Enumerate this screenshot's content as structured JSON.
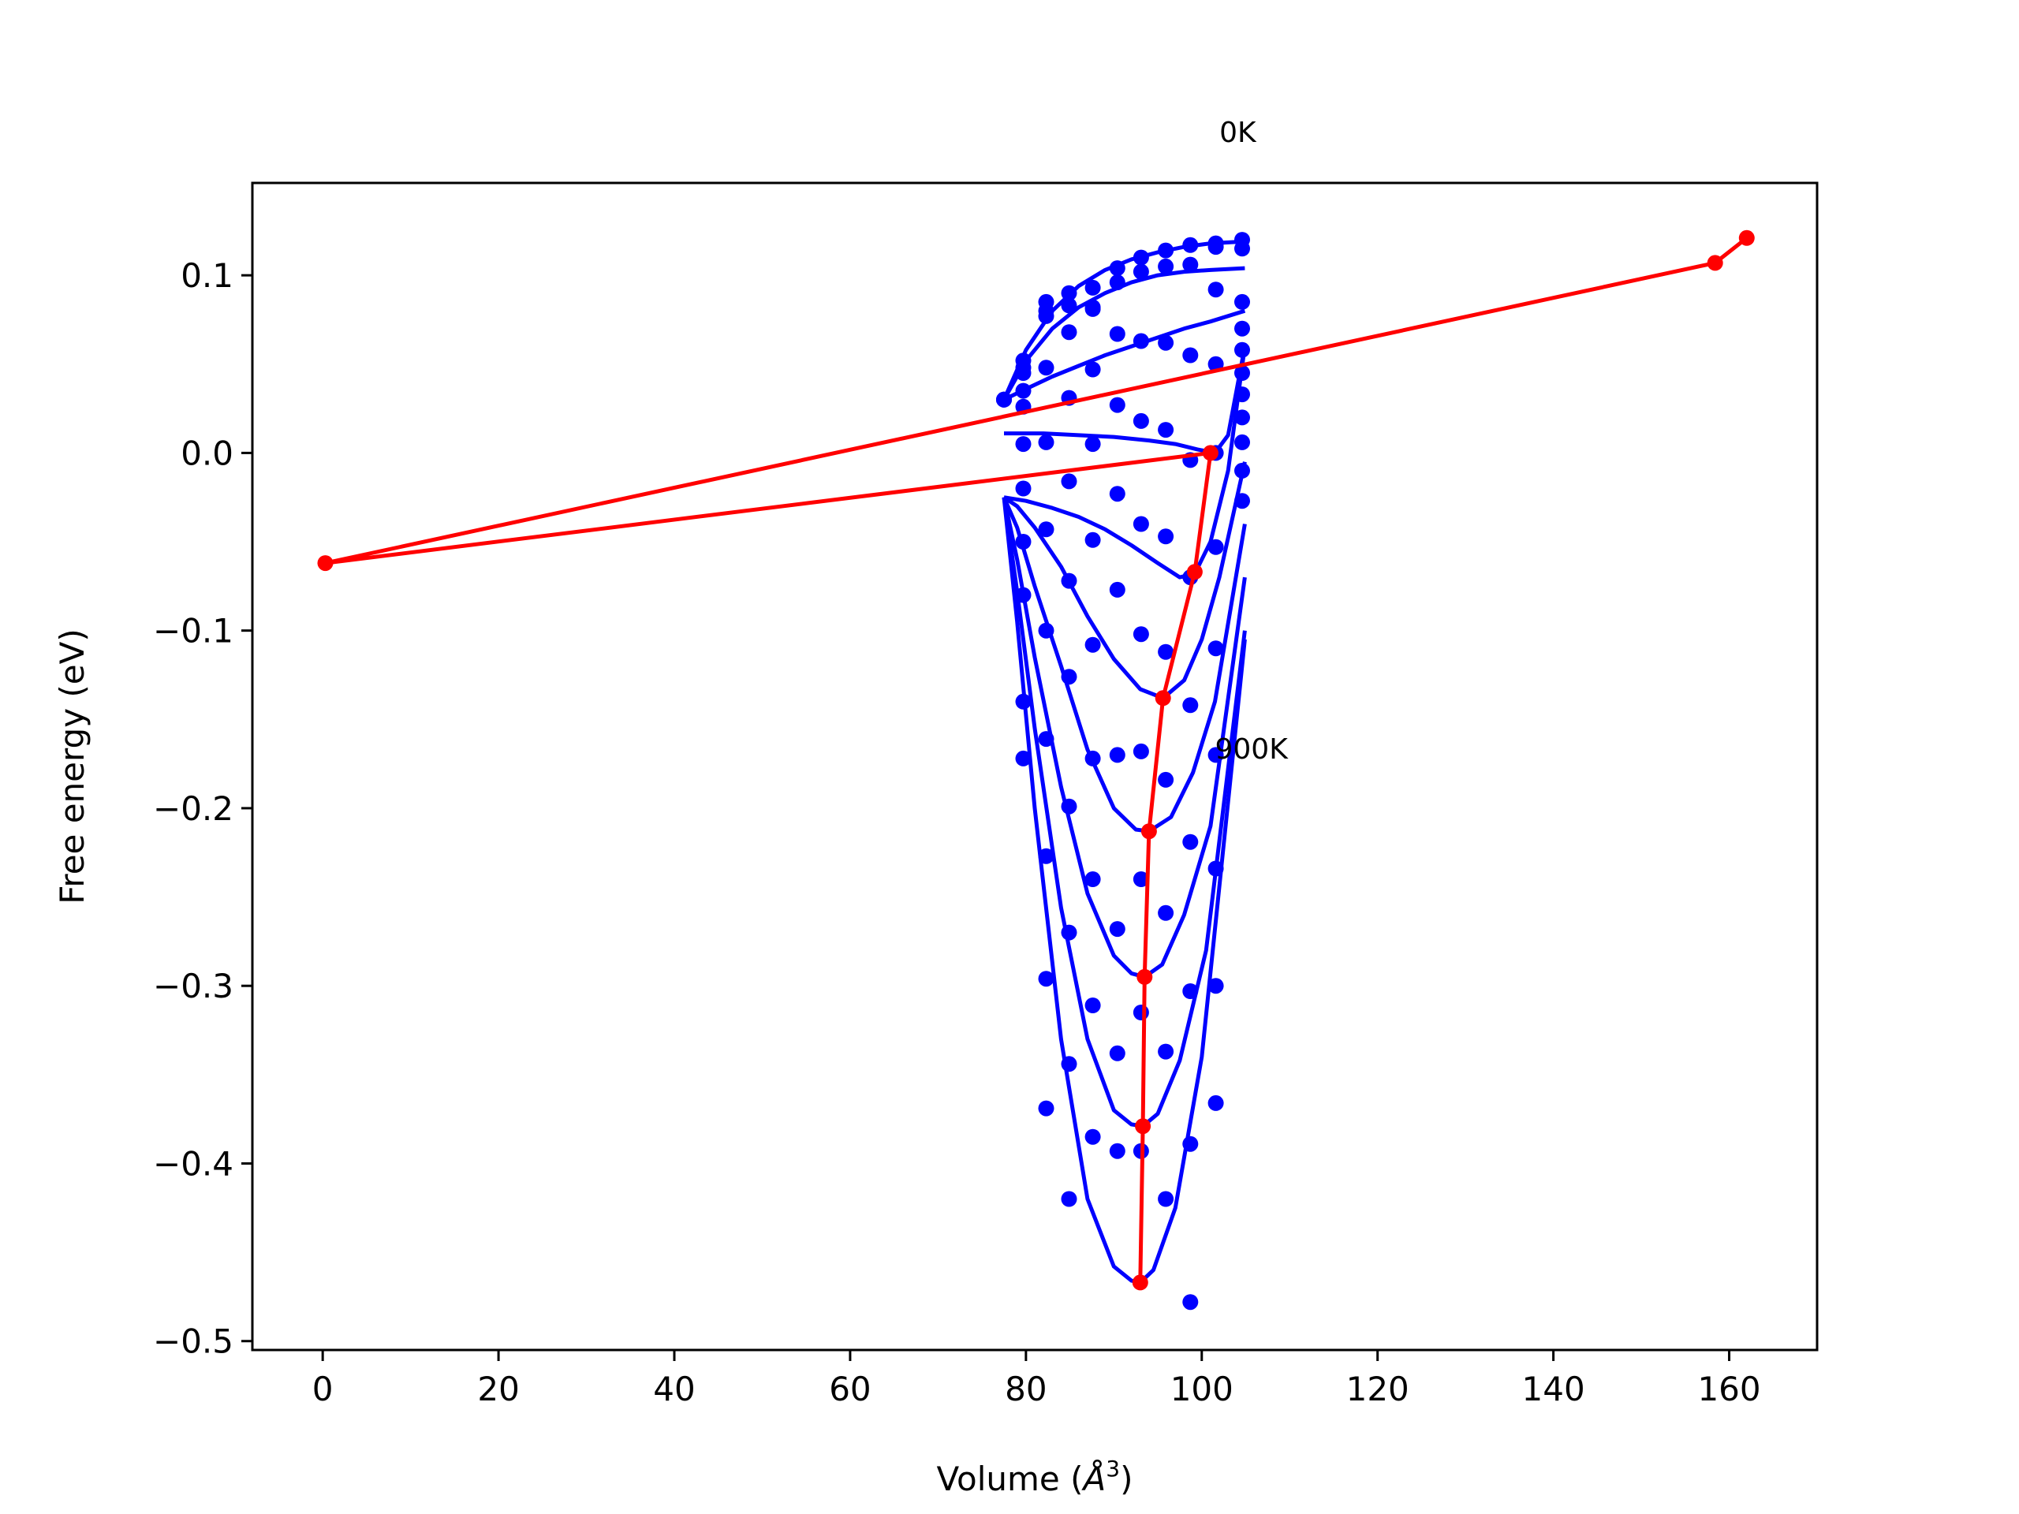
{
  "chart_data": {
    "type": "scatter",
    "title": "",
    "xlabel": "Volume (",
    "xlabel_symbol": "Å",
    "xlabel_exp": "3",
    "xlabel_close": ")",
    "ylabel": "Free energy (eV)",
    "xlim": [
      -8,
      170
    ],
    "ylim": [
      -0.505,
      0.152
    ],
    "x_ticks": [
      {
        "value": 0,
        "label": "0"
      },
      {
        "value": 20,
        "label": "20"
      },
      {
        "value": 40,
        "label": "40"
      },
      {
        "value": 60,
        "label": "60"
      },
      {
        "value": 80,
        "label": "80"
      },
      {
        "value": 100,
        "label": "100"
      },
      {
        "value": 120,
        "label": "120"
      },
      {
        "value": 140,
        "label": "140"
      },
      {
        "value": 160,
        "label": "160"
      }
    ],
    "y_ticks": [
      {
        "value": 0.1,
        "label": "0.1"
      },
      {
        "value": 0.0,
        "label": "0.0"
      },
      {
        "value": -0.1,
        "label": "−0.1"
      },
      {
        "value": -0.2,
        "label": "−0.2"
      },
      {
        "value": -0.3,
        "label": "−0.3"
      },
      {
        "value": -0.4,
        "label": "−0.4"
      },
      {
        "value": -0.5,
        "label": "−0.5"
      }
    ],
    "grid": false,
    "colors": {
      "data": "#0000ff",
      "fit": "#0000ff",
      "minimum_path": "#ff0000"
    },
    "annotations": [
      {
        "text": "0K",
        "x": 102,
        "y": 0.175
      },
      {
        "text": "900K",
        "x": 101.5,
        "y": -0.172
      }
    ],
    "point_series": [
      {
        "x": [
          77.5,
          79.7,
          82.3,
          84.9,
          87.6,
          90.4,
          93.1,
          95.9,
          98.7,
          101.6,
          104.6
        ],
        "y": [
          0.03,
          0.052,
          0.085,
          0.09,
          0.093,
          0.104,
          0.11,
          0.114,
          0.117,
          0.118,
          0.12
        ]
      },
      {
        "x": [
          77.5,
          79.7,
          82.3,
          84.9,
          87.6,
          90.4,
          93.1,
          95.9,
          98.7,
          101.6,
          104.6
        ],
        "y": [
          0.03,
          0.045,
          0.08,
          0.083,
          0.081,
          0.096,
          0.102,
          0.105,
          0.106,
          0.116,
          0.115
        ]
      },
      {
        "x": [
          77.5,
          79.7,
          82.3,
          84.9,
          87.6,
          90.4,
          93.1,
          95.9,
          98.7,
          101.6,
          104.6
        ],
        "y": [
          0.03,
          0.048,
          0.077,
          0.068,
          0.082,
          0.067,
          0.063,
          0.062,
          0.055,
          0.092,
          0.085
        ]
      },
      {
        "x": [
          79.7,
          82.3,
          84.9,
          87.6,
          90.4,
          93.1,
          95.9,
          98.7,
          101.6,
          104.6
        ],
        "y": [
          0.035,
          0.048,
          0.031,
          0.047,
          0.027,
          0.018,
          0.013,
          -0.004,
          0.05,
          0.07
        ]
      },
      {
        "x": [
          79.7,
          82.3,
          84.9,
          87.6,
          90.4,
          93.1,
          95.9,
          98.7,
          101.6,
          104.6
        ],
        "y": [
          0.026,
          0.006,
          -0.016,
          0.005,
          -0.023,
          -0.04,
          -0.047,
          -0.07,
          0.0,
          0.058
        ]
      },
      {
        "x": [
          79.7,
          82.3,
          84.9,
          87.6,
          90.4,
          93.1,
          95.9,
          98.7,
          101.6,
          104.6
        ],
        "y": [
          0.005,
          -0.043,
          -0.072,
          -0.049,
          -0.077,
          -0.102,
          -0.112,
          -0.142,
          -0.053,
          0.045
        ]
      },
      {
        "x": [
          79.7,
          82.3,
          84.9,
          87.6,
          90.4,
          93.1,
          95.9,
          98.7,
          101.6,
          104.6
        ],
        "y": [
          -0.02,
          -0.1,
          -0.126,
          -0.108,
          -0.17,
          -0.168,
          -0.184,
          -0.219,
          -0.11,
          0.033
        ]
      },
      {
        "x": [
          79.7,
          82.3,
          84.9,
          87.6,
          90.4,
          93.1,
          95.9,
          98.7,
          101.6,
          104.6
        ],
        "y": [
          -0.05,
          -0.161,
          -0.199,
          -0.172,
          -0.268,
          -0.24,
          -0.259,
          -0.303,
          -0.17,
          0.02
        ]
      },
      {
        "x": [
          79.7,
          82.3,
          84.9,
          87.6,
          90.4,
          93.1,
          95.9,
          98.7,
          101.6,
          104.6
        ],
        "y": [
          -0.08,
          -0.227,
          -0.27,
          -0.24,
          -0.338,
          -0.315,
          -0.337,
          -0.389,
          -0.234,
          0.006
        ]
      },
      {
        "x": [
          79.7,
          82.3,
          84.9,
          87.6,
          90.4,
          93.1,
          95.9,
          98.7,
          101.6,
          104.6
        ],
        "y": [
          -0.14,
          -0.296,
          -0.344,
          -0.311,
          -0.393,
          -0.393,
          -0.42,
          -0.478,
          -0.3,
          -0.01
        ]
      },
      {
        "x": [
          79.7,
          82.3,
          84.9,
          87.6,
          104.6
        ],
        "y": [
          -0.172,
          -0.369,
          -0.42,
          -0.385,
          -0.027
        ]
      },
      {
        "x": [
          101.6
        ],
        "y": [
          -0.366
        ]
      }
    ],
    "fit_curves": [
      {
        "x": [
          77.5,
          80.0,
          83.0,
          86.0,
          89.0,
          92.0,
          95.0,
          98.0,
          101.0,
          104.9
        ],
        "y": [
          0.03,
          0.058,
          0.08,
          0.094,
          0.103,
          0.109,
          0.113,
          0.116,
          0.118,
          0.119
        ]
      },
      {
        "x": [
          77.5,
          80.0,
          83.0,
          86.0,
          89.0,
          92.0,
          95.0,
          98.0,
          101.0,
          104.9
        ],
        "y": [
          0.03,
          0.052,
          0.07,
          0.082,
          0.09,
          0.096,
          0.1,
          0.102,
          0.103,
          0.104
        ]
      },
      {
        "x": [
          77.5,
          80.0,
          83.0,
          86.0,
          89.0,
          92.0,
          95.0,
          98.0,
          101.0,
          104.9
        ],
        "y": [
          0.03,
          0.036,
          0.043,
          0.049,
          0.055,
          0.06,
          0.065,
          0.07,
          0.074,
          0.08
        ]
      },
      {
        "x": [
          77.5,
          82.0,
          86.0,
          90.0,
          94.0,
          97.0,
          99.5,
          101.5,
          103.0,
          104.9
        ],
        "y": [
          0.011,
          0.011,
          0.01,
          0.009,
          0.007,
          0.005,
          0.002,
          0.0,
          0.01,
          0.06
        ]
      },
      {
        "x": [
          77.5,
          80.0,
          83.0,
          86.0,
          89.0,
          92.0,
          95.0,
          97.5,
          99.2,
          101.0,
          103.0,
          104.9
        ],
        "y": [
          -0.025,
          -0.027,
          -0.031,
          -0.036,
          -0.043,
          -0.052,
          -0.062,
          -0.07,
          -0.068,
          -0.05,
          -0.01,
          0.06
        ]
      },
      {
        "x": [
          77.5,
          79.0,
          81.0,
          84.0,
          87.0,
          90.0,
          93.0,
          95.6,
          98.0,
          100.0,
          102.0,
          104.9
        ],
        "y": [
          -0.025,
          -0.03,
          -0.042,
          -0.064,
          -0.092,
          -0.116,
          -0.133,
          -0.138,
          -0.128,
          -0.105,
          -0.07,
          -0.005
        ]
      },
      {
        "x": [
          77.5,
          79.0,
          81.0,
          84.0,
          87.0,
          90.0,
          92.5,
          94.0,
          96.5,
          99.0,
          101.5,
          104.9
        ],
        "y": [
          -0.025,
          -0.042,
          -0.075,
          -0.12,
          -0.167,
          -0.2,
          -0.212,
          -0.213,
          -0.205,
          -0.18,
          -0.14,
          -0.04
        ]
      },
      {
        "x": [
          77.5,
          79.0,
          81.0,
          84.0,
          87.0,
          90.0,
          92.0,
          93.5,
          95.5,
          98.0,
          101.0,
          104.9
        ],
        "y": [
          -0.025,
          -0.06,
          -0.115,
          -0.188,
          -0.248,
          -0.283,
          -0.293,
          -0.295,
          -0.288,
          -0.26,
          -0.21,
          -0.07
        ]
      },
      {
        "x": [
          77.5,
          79.0,
          81.0,
          84.0,
          87.0,
          90.0,
          92.0,
          93.3,
          95.0,
          97.5,
          100.5,
          104.9
        ],
        "y": [
          -0.025,
          -0.078,
          -0.155,
          -0.256,
          -0.33,
          -0.37,
          -0.378,
          -0.379,
          -0.372,
          -0.342,
          -0.28,
          -0.1
        ]
      },
      {
        "x": [
          77.5,
          79.0,
          81.0,
          84.0,
          87.0,
          90.0,
          92.0,
          93.0,
          94.5,
          97.0,
          100.0,
          104.9
        ],
        "y": [
          -0.025,
          -0.095,
          -0.2,
          -0.33,
          -0.42,
          -0.458,
          -0.466,
          -0.467,
          -0.46,
          -0.425,
          -0.34,
          -0.105
        ]
      }
    ],
    "minimum_path": {
      "x": [
        93.0,
        93.3,
        93.5,
        94.0,
        95.6,
        99.2,
        101.0,
        0.3,
        158.4,
        162.0
      ],
      "y": [
        -0.467,
        -0.379,
        -0.295,
        -0.213,
        -0.138,
        -0.067,
        0.0,
        -0.062,
        0.107,
        0.121
      ]
    }
  }
}
